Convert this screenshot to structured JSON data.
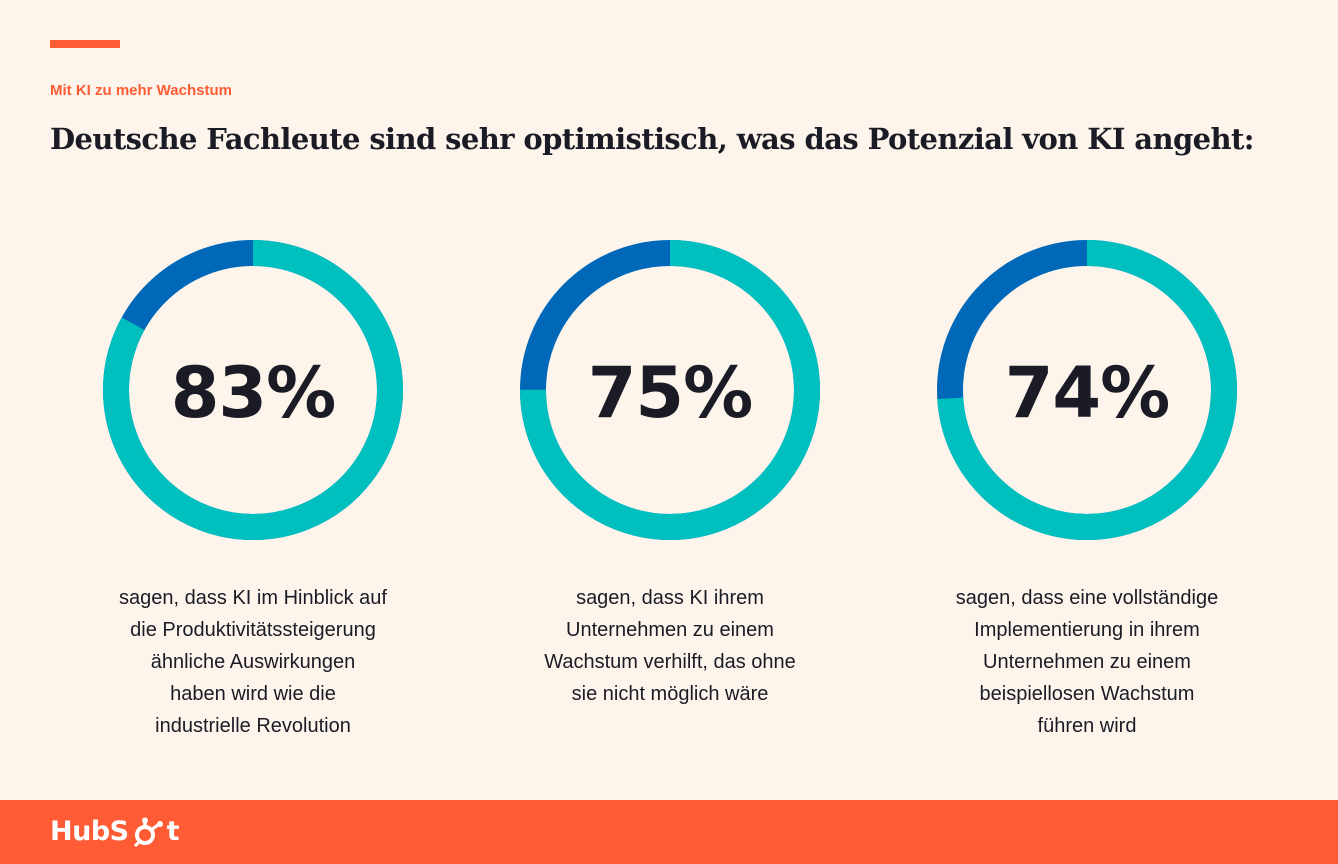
{
  "header": {
    "eyebrow": "Mit KI zu mehr Wachstum",
    "title": "Deutsche Fachleute sind sehr optimistisch, was das Potenzial von KI angeht:"
  },
  "colors": {
    "accent": "#FF5C35",
    "ring_main": "#00BFBF",
    "ring_rest": "#0068B8",
    "text": "#1B1B26",
    "background": "#FDF5EC"
  },
  "chart_data": [
    {
      "type": "donut",
      "value": 83,
      "value_label": "83%",
      "description": "sagen, dass KI im Hinblick auf\ndie Produktivitätssteigerung\nähnliche Auswirkungen\nhaben wird wie die\nindustrielle Revolution"
    },
    {
      "type": "donut",
      "value": 75,
      "value_label": "75%",
      "description": "sagen, dass KI ihrem\nUnternehmen zu einem\nWachstum verhilft, das ohne\nsie nicht möglich wäre"
    },
    {
      "type": "donut",
      "value": 74,
      "value_label": "74%",
      "description": "sagen, dass eine vollständige\nImplementierung in ihrem\nUnternehmen zu einem\nbeispiellosen Wachstum\nführen wird"
    }
  ],
  "footer": {
    "logo_left": "HubS",
    "logo_right": "t",
    "logo_icon": "sprocket-icon"
  }
}
